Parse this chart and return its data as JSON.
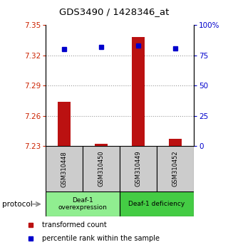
{
  "title": "GDS3490 / 1428346_at",
  "samples": [
    "GSM310448",
    "GSM310450",
    "GSM310449",
    "GSM310452"
  ],
  "bar_values": [
    7.274,
    7.232,
    7.338,
    7.237
  ],
  "bar_base": 7.23,
  "percentile_values": [
    80,
    82,
    83,
    81
  ],
  "ylim_left": [
    7.23,
    7.35
  ],
  "ylim_right": [
    0,
    100
  ],
  "yticks_left": [
    7.23,
    7.26,
    7.29,
    7.32,
    7.35
  ],
  "ytick_labels_left": [
    "7.23",
    "7.26",
    "7.29",
    "7.32",
    "7.35"
  ],
  "yticks_right": [
    0,
    25,
    50,
    75,
    100
  ],
  "ytick_labels_right": [
    "0",
    "25",
    "50",
    "75",
    "100%"
  ],
  "bar_color": "#bb1111",
  "percentile_color": "#0000cc",
  "groups": [
    {
      "label": "Deaf-1\noverexpression",
      "samples": [
        0,
        1
      ],
      "color": "#90ee90"
    },
    {
      "label": "Deaf-1 deficiency",
      "samples": [
        2,
        3
      ],
      "color": "#44cc44"
    }
  ],
  "group_label": "protocol",
  "legend_bar_label": "transformed count",
  "legend_pct_label": "percentile rank within the sample",
  "bar_width": 0.35,
  "dotted_line_color": "#999999",
  "background_color": "#ffffff",
  "tick_color_left": "#cc2200",
  "tick_color_right": "#0000cc",
  "sample_box_color": "#cccccc",
  "spine_color": "#000000"
}
